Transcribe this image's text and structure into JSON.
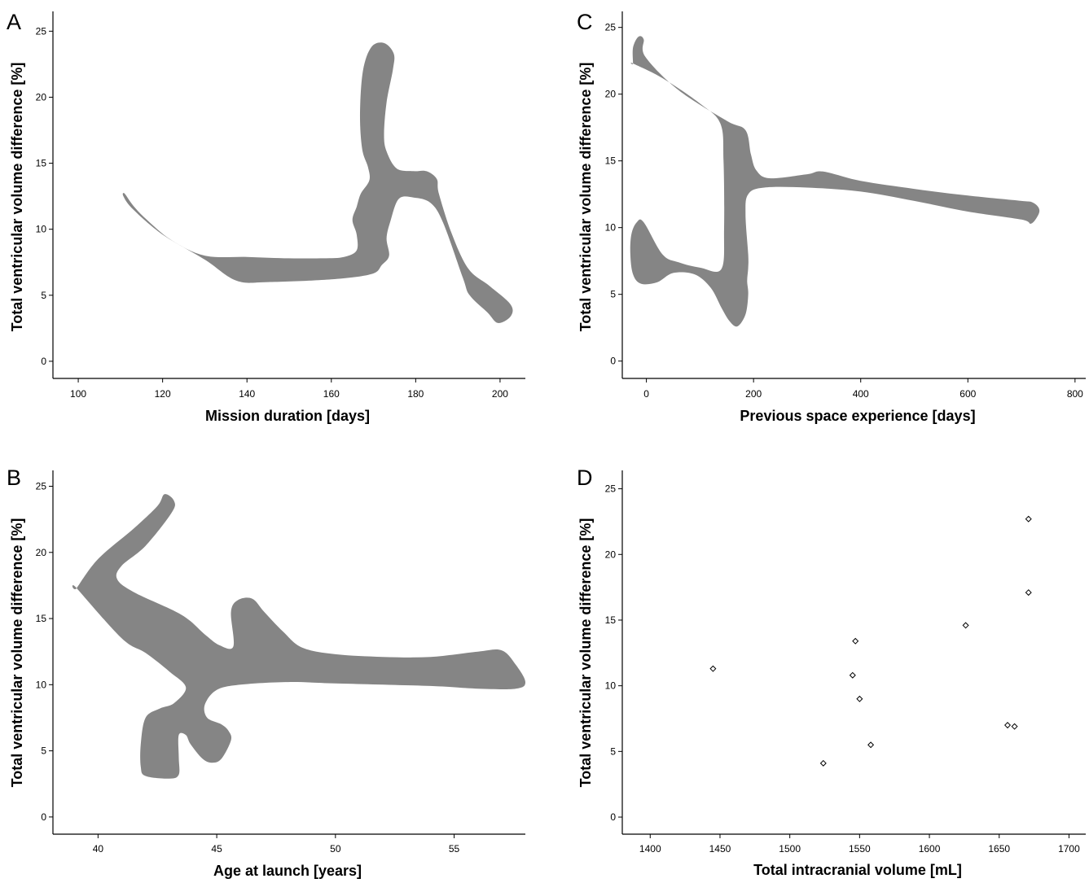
{
  "chart_data": [
    {
      "panel": "A",
      "type": "violin-shape",
      "xlabel": "Mission duration [days]",
      "ylabel": "Total ventricular volume difference [%]",
      "xlim": [
        94,
        206
      ],
      "ylim": [
        -1.3,
        26.5
      ],
      "xticks": [
        100,
        120,
        140,
        160,
        180,
        200
      ],
      "yticks": [
        0,
        5,
        10,
        15,
        20,
        25
      ],
      "fill": "#858585",
      "outline": [
        [
          111,
          12.7
        ],
        [
          113,
          11.8
        ],
        [
          116,
          10.8
        ],
        [
          122,
          9.2
        ],
        [
          130,
          8.0
        ],
        [
          140,
          7.9
        ],
        [
          150,
          7.8
        ],
        [
          158,
          7.8
        ],
        [
          163,
          7.9
        ],
        [
          166,
          8.4
        ],
        [
          166,
          9.6
        ],
        [
          165,
          10.7
        ],
        [
          166,
          11.7
        ],
        [
          167,
          12.7
        ],
        [
          169,
          13.7
        ],
        [
          168.7,
          14.7
        ],
        [
          167.3,
          16.1
        ],
        [
          166.8,
          18.8
        ],
        [
          167.5,
          22.0
        ],
        [
          169.5,
          23.8
        ],
        [
          172.5,
          24.1
        ],
        [
          174.8,
          23.3
        ],
        [
          174.6,
          22.1
        ],
        [
          173.1,
          19.6
        ],
        [
          172.5,
          17.2
        ],
        [
          173.1,
          15.9
        ],
        [
          175.5,
          14.6
        ],
        [
          179.5,
          14.4
        ],
        [
          182.5,
          14.4
        ],
        [
          185.0,
          13.8
        ],
        [
          185.5,
          12.7
        ],
        [
          188.5,
          9.7
        ],
        [
          192.5,
          7.0
        ],
        [
          197.5,
          5.7
        ],
        [
          202.5,
          4.3
        ],
        [
          202.5,
          3.4
        ],
        [
          199.5,
          2.9
        ],
        [
          197.0,
          3.7
        ],
        [
          192.8,
          5.0
        ],
        [
          191.2,
          6.3
        ],
        [
          186.5,
          10.5
        ],
        [
          183.5,
          12.0
        ],
        [
          179.5,
          12.4
        ],
        [
          176.0,
          12.3
        ],
        [
          174.0,
          10.6
        ],
        [
          173.1,
          9.3
        ],
        [
          173.7,
          8.0
        ],
        [
          172.0,
          7.3
        ],
        [
          169.5,
          6.6
        ],
        [
          160.0,
          6.2
        ],
        [
          145.0,
          6.0
        ],
        [
          137.5,
          6.1
        ],
        [
          130.0,
          7.7
        ],
        [
          120.0,
          9.6
        ],
        [
          113.0,
          11.5
        ],
        [
          110.7,
          12.5
        ]
      ]
    },
    {
      "panel": "C",
      "type": "violin-shape",
      "xlabel": "Previous space experience [days]",
      "ylabel": "Total ventricular volume difference [%]",
      "xlim": [
        -45,
        820
      ],
      "ylim": [
        -1.3,
        26.2
      ],
      "xticks": [
        0,
        200,
        400,
        600,
        800
      ],
      "yticks": [
        0,
        5,
        10,
        15,
        20,
        25
      ],
      "fill": "#858585",
      "outline": [
        [
          -25,
          22.3
        ],
        [
          -25,
          23.5
        ],
        [
          -15,
          24.3
        ],
        [
          -5,
          24.1
        ],
        [
          -2,
          22.8
        ],
        [
          60,
          20.3
        ],
        [
          150,
          18.0
        ],
        [
          185,
          17.3
        ],
        [
          195,
          15.5
        ],
        [
          205,
          14.3
        ],
        [
          230,
          13.7
        ],
        [
          300,
          14.0
        ],
        [
          330,
          14.2
        ],
        [
          400,
          13.5
        ],
        [
          500,
          12.9
        ],
        [
          600,
          12.4
        ],
        [
          700,
          12.0
        ],
        [
          720,
          11.9
        ],
        [
          732,
          11.5
        ],
        [
          732,
          11.0
        ],
        [
          718,
          10.3
        ],
        [
          700,
          10.6
        ],
        [
          600,
          11.2
        ],
        [
          500,
          12.0
        ],
        [
          400,
          12.7
        ],
        [
          300,
          13.0
        ],
        [
          220,
          13.0
        ],
        [
          190,
          12.5
        ],
        [
          185,
          11.0
        ],
        [
          190,
          8.0
        ],
        [
          190,
          7.0
        ],
        [
          188,
          6.0
        ],
        [
          190,
          5.0
        ],
        [
          185,
          3.5
        ],
        [
          170,
          2.6
        ],
        [
          155,
          3.0
        ],
        [
          140,
          4.0
        ],
        [
          120,
          5.5
        ],
        [
          90,
          6.5
        ],
        [
          50,
          6.6
        ],
        [
          20,
          5.9
        ],
        [
          -10,
          5.8
        ],
        [
          -25,
          6.5
        ],
        [
          -30,
          8.0
        ],
        [
          -28,
          9.5
        ],
        [
          -18,
          10.4
        ],
        [
          -5,
          10.4
        ],
        [
          30,
          8.0
        ],
        [
          60,
          7.4
        ],
        [
          100,
          7.0
        ],
        [
          140,
          6.9
        ],
        [
          145,
          10.0
        ],
        [
          144,
          15.0
        ],
        [
          138,
          17.8
        ],
        [
          100,
          19.3
        ],
        [
          30,
          21.2
        ],
        [
          -25,
          22.3
        ]
      ]
    },
    {
      "panel": "B",
      "type": "violin-shape",
      "xlabel": "Age at launch [years]",
      "ylabel": "Total ventricular volume difference [%]",
      "xlim": [
        38.1,
        58.0
      ],
      "ylim": [
        -1.3,
        26.2
      ],
      "xticks": [
        40,
        45,
        50,
        55
      ],
      "yticks": [
        0,
        5,
        10,
        15,
        20,
        25
      ],
      "fill": "#858585",
      "outline": [
        [
          39.1,
          17.3
        ],
        [
          40.0,
          19.5
        ],
        [
          41.5,
          21.8
        ],
        [
          42.5,
          23.5
        ],
        [
          42.8,
          24.4
        ],
        [
          43.2,
          23.9
        ],
        [
          43.1,
          23.0
        ],
        [
          42.0,
          20.5
        ],
        [
          41.0,
          19.0
        ],
        [
          40.8,
          18.0
        ],
        [
          41.5,
          17.0
        ],
        [
          43.5,
          15.3
        ],
        [
          44.5,
          13.8
        ],
        [
          45.1,
          13.0
        ],
        [
          45.7,
          12.9
        ],
        [
          45.6,
          15.5
        ],
        [
          45.9,
          16.4
        ],
        [
          46.5,
          16.5
        ],
        [
          47.0,
          15.5
        ],
        [
          47.8,
          14.0
        ],
        [
          48.6,
          12.8
        ],
        [
          50.0,
          12.3
        ],
        [
          52.0,
          12.1
        ],
        [
          54.0,
          12.1
        ],
        [
          56.0,
          12.5
        ],
        [
          57.0,
          12.6
        ],
        [
          57.6,
          11.5
        ],
        [
          58.0,
          10.2
        ],
        [
          57.6,
          9.7
        ],
        [
          56.0,
          9.7
        ],
        [
          54.0,
          9.9
        ],
        [
          50.0,
          10.1
        ],
        [
          48.0,
          10.2
        ],
        [
          46.0,
          10.0
        ],
        [
          45.0,
          9.6
        ],
        [
          44.5,
          8.5
        ],
        [
          44.6,
          7.5
        ],
        [
          45.2,
          7.0
        ],
        [
          45.5,
          6.5
        ],
        [
          45.6,
          5.8
        ],
        [
          45.2,
          4.4
        ],
        [
          44.8,
          4.1
        ],
        [
          44.4,
          4.4
        ],
        [
          43.9,
          5.5
        ],
        [
          43.7,
          6.2
        ],
        [
          43.4,
          6.2
        ],
        [
          43.4,
          4.5
        ],
        [
          43.4,
          3.2
        ],
        [
          43.0,
          2.9
        ],
        [
          42.0,
          3.1
        ],
        [
          41.8,
          3.8
        ],
        [
          41.8,
          5.5
        ],
        [
          42.0,
          7.5
        ],
        [
          42.6,
          8.2
        ],
        [
          43.2,
          8.6
        ],
        [
          43.7,
          9.8
        ],
        [
          43.0,
          11.0
        ],
        [
          42.0,
          12.4
        ],
        [
          41.0,
          13.5
        ],
        [
          39.1,
          17.3
        ]
      ]
    },
    {
      "panel": "D",
      "type": "scatter",
      "xlabel": "Total intracranial volume [mL]",
      "ylabel": "Total ventricular volume difference [%]",
      "xlim": [
        1380,
        1712
      ],
      "ylim": [
        -1.3,
        26.4
      ],
      "xticks": [
        1400,
        1450,
        1500,
        1550,
        1600,
        1650,
        1700
      ],
      "yticks": [
        0,
        5,
        10,
        15,
        20,
        25
      ],
      "x": [
        1445,
        1524,
        1545,
        1547,
        1550,
        1558,
        1626,
        1656,
        1661,
        1671,
        1671
      ],
      "y": [
        11.3,
        4.1,
        10.8,
        13.4,
        9.0,
        5.5,
        14.6,
        7.0,
        6.9,
        17.1,
        22.7
      ]
    }
  ],
  "panels": {
    "A": {
      "letter": "A"
    },
    "B": {
      "letter": "B"
    },
    "C": {
      "letter": "C"
    },
    "D": {
      "letter": "D"
    }
  }
}
